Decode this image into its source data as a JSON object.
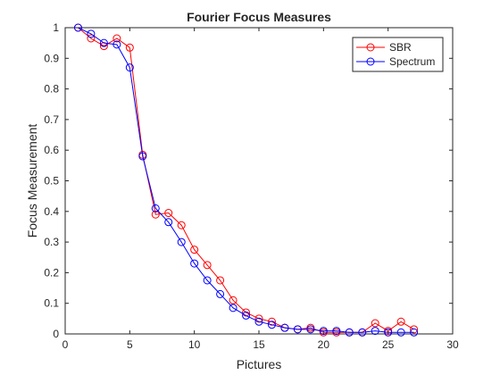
{
  "chart_data": {
    "type": "line",
    "title": "Fourier Focus Measures",
    "xlabel": "Pictures",
    "ylabel": "Focus Measurement",
    "xlim": [
      0,
      30
    ],
    "ylim": [
      0,
      1
    ],
    "x_ticks": [
      "0",
      "5",
      "10",
      "15",
      "20",
      "25",
      "30"
    ],
    "y_ticks": [
      "0",
      "0.1",
      "0.2",
      "0.3",
      "0.4",
      "0.5",
      "0.6",
      "0.7",
      "0.8",
      "0.9",
      "1"
    ],
    "grid": false,
    "legend_position": "top-right",
    "x": [
      1,
      2,
      3,
      4,
      5,
      6,
      7,
      8,
      9,
      10,
      11,
      12,
      13,
      14,
      15,
      16,
      17,
      18,
      19,
      20,
      21,
      22,
      23,
      24,
      25,
      26,
      27
    ],
    "series": [
      {
        "name": "SBR",
        "color": "#ff0000",
        "marker": "circle",
        "values": [
          1.0,
          0.965,
          0.94,
          0.965,
          0.935,
          0.585,
          0.39,
          0.395,
          0.355,
          0.275,
          0.225,
          0.175,
          0.11,
          0.07,
          0.05,
          0.04,
          0.02,
          0.015,
          0.02,
          0.005,
          0.005,
          0.005,
          0.005,
          0.035,
          0.01,
          0.04,
          0.015
        ]
      },
      {
        "name": "Spectrum",
        "color": "#0000ff",
        "marker": "circle",
        "values": [
          1.0,
          0.98,
          0.95,
          0.945,
          0.87,
          0.58,
          0.41,
          0.365,
          0.3,
          0.23,
          0.175,
          0.13,
          0.085,
          0.06,
          0.04,
          0.03,
          0.02,
          0.015,
          0.015,
          0.01,
          0.01,
          0.005,
          0.005,
          0.01,
          0.005,
          0.005,
          0.005
        ]
      }
    ]
  }
}
